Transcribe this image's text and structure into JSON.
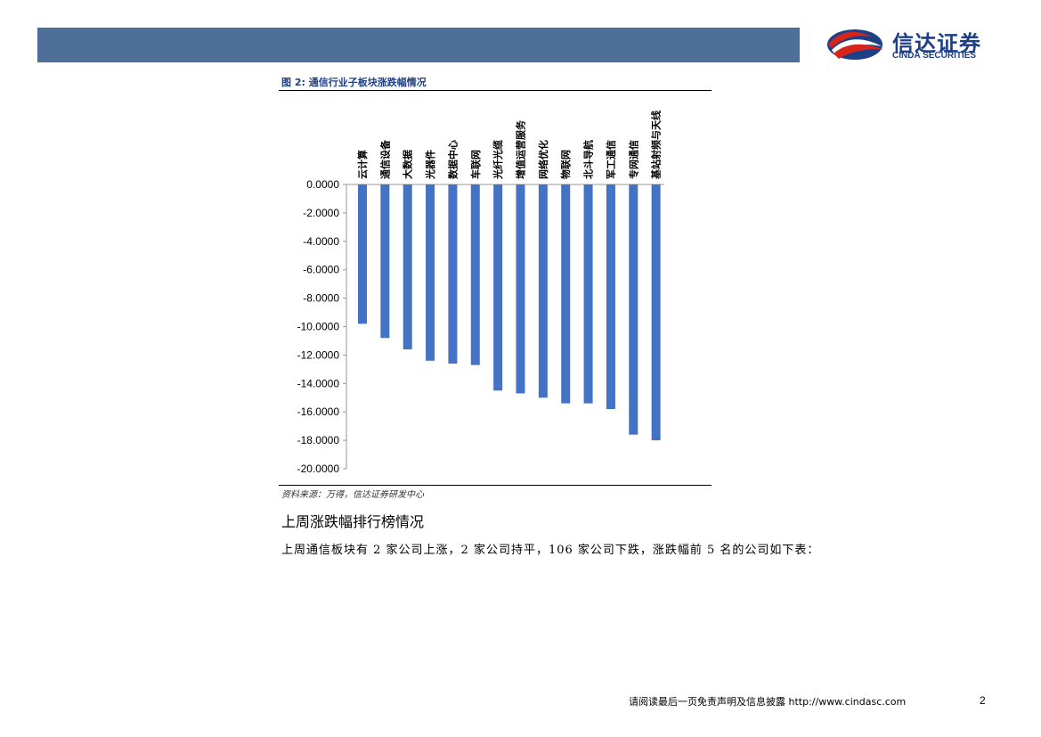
{
  "header": {
    "logo_cn": "信达证券",
    "logo_en": "CINDA SECURITIES",
    "logo_colors": {
      "red": "#d9241c",
      "blue": "#1d3f86",
      "bar": "#4d6f98"
    }
  },
  "figure": {
    "title": "图 2: 通信行业子板块涨跌幅情况",
    "source": "资料来源：万得，信达证券研发中心"
  },
  "chart_data": {
    "type": "bar",
    "title": "",
    "xlabel": "",
    "ylabel": "",
    "categories": [
      "云计算",
      "通信设备",
      "大数据",
      "光器件",
      "数据中心",
      "车联网",
      "光纤光缆",
      "增值运营服务",
      "网络优化",
      "物联网",
      "北斗导航",
      "军工通信",
      "专网通信",
      "基站射频与天线"
    ],
    "series": [
      {
        "values": [
          -9.8,
          -10.8,
          -11.6,
          -12.4,
          -12.6,
          -12.7,
          -14.5,
          -14.7,
          -15.0,
          -15.4,
          -15.4,
          -15.8,
          -17.6,
          -18.0
        ]
      }
    ],
    "ylim": [
      -20,
      0
    ],
    "yticks": [
      "0.0000",
      "-2.0000",
      "-4.0000",
      "-6.0000",
      "-8.0000",
      "-10.0000",
      "-12.0000",
      "-14.0000",
      "-16.0000",
      "-18.0000",
      "-20.0000"
    ],
    "bar_color": "#4472c4",
    "grid": false,
    "legend": "none"
  },
  "section": {
    "heading": "上周涨跌幅排行榜情况",
    "body": "上周通信板块有 2 家公司上涨，2 家公司持平，106 家公司下跌，涨跌幅前 5 名的公司如下表："
  },
  "footer": {
    "text": "请阅读最后一页免责声明及信息披露 http://www.cindasc.com",
    "page": "2"
  }
}
